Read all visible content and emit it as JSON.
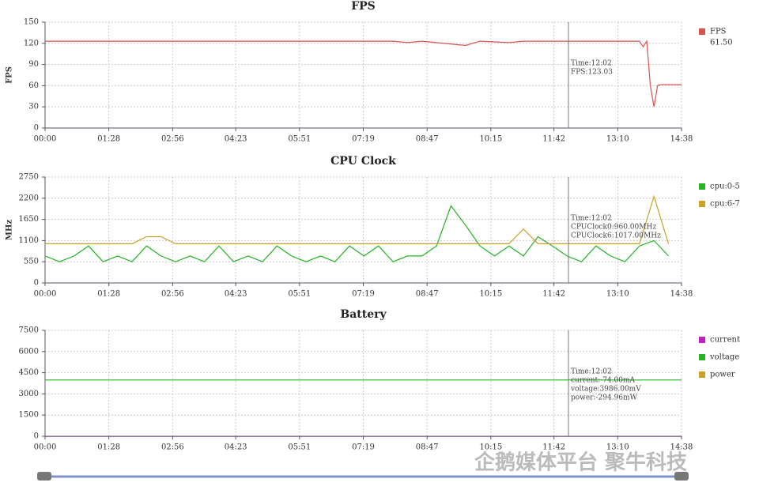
{
  "chart_data": [
    {
      "type": "line",
      "title": "FPS",
      "ylabel": "FPS",
      "xlim": [
        0,
        878
      ],
      "xticks": [
        {
          "value": 0,
          "label": "00:00"
        },
        {
          "value": 88,
          "label": "01:28"
        },
        {
          "value": 176,
          "label": "02:56"
        },
        {
          "value": 263,
          "label": "04:23"
        },
        {
          "value": 351,
          "label": "05:51"
        },
        {
          "value": 439,
          "label": "07:19"
        },
        {
          "value": 527,
          "label": "08:47"
        },
        {
          "value": 615,
          "label": "10:15"
        },
        {
          "value": 702,
          "label": "11:42"
        },
        {
          "value": 790,
          "label": "13:10"
        },
        {
          "value": 878,
          "label": "14:38"
        }
      ],
      "ylim": [
        0,
        150
      ],
      "yticks": [
        0,
        30,
        60,
        90,
        120,
        150
      ],
      "grid": true,
      "cursor_x": 722,
      "annotations": [
        "Time:12:02",
        "FPS:123.03"
      ],
      "x": [
        0,
        480,
        500,
        520,
        580,
        600,
        640,
        660,
        700,
        760,
        820,
        825,
        830,
        835,
        840,
        845,
        850,
        878
      ],
      "series": [
        {
          "name": "FPS",
          "color": "#d9534f",
          "legend_value": "61.50",
          "values": [
            123,
            123,
            121,
            123,
            117,
            123,
            121,
            123,
            123,
            123,
            123,
            115,
            123,
            60,
            30,
            60,
            61.5,
            61.5
          ]
        }
      ]
    },
    {
      "type": "line",
      "title": "CPU Clock",
      "ylabel": "MHz",
      "xlim": [
        0,
        878
      ],
      "xticks": [
        {
          "value": 0,
          "label": "00:00"
        },
        {
          "value": 88,
          "label": "01:28"
        },
        {
          "value": 176,
          "label": "02:56"
        },
        {
          "value": 263,
          "label": "04:23"
        },
        {
          "value": 351,
          "label": "05:51"
        },
        {
          "value": 439,
          "label": "07:19"
        },
        {
          "value": 527,
          "label": "08:47"
        },
        {
          "value": 615,
          "label": "10:15"
        },
        {
          "value": 702,
          "label": "11:42"
        },
        {
          "value": 790,
          "label": "13:10"
        },
        {
          "value": 878,
          "label": "14:38"
        }
      ],
      "ylim": [
        0,
        2750
      ],
      "yticks": [
        0,
        550,
        1100,
        1650,
        2200,
        2750
      ],
      "grid": true,
      "cursor_x": 722,
      "annotations": [
        "Time:12:02",
        "CPUClock0:960.00MHz",
        "CPUClock6:1017.00MHz"
      ],
      "x": [
        0,
        20,
        40,
        60,
        80,
        100,
        120,
        140,
        160,
        180,
        200,
        220,
        240,
        260,
        280,
        300,
        320,
        340,
        360,
        380,
        400,
        420,
        440,
        460,
        480,
        500,
        520,
        540,
        560,
        580,
        600,
        620,
        640,
        660,
        680,
        700,
        720,
        740,
        760,
        780,
        800,
        820,
        840,
        860
      ],
      "series": [
        {
          "name": "cpu:0-5",
          "color": "#22b422",
          "values": [
            700,
            550,
            700,
            960,
            550,
            700,
            550,
            960,
            700,
            550,
            700,
            550,
            960,
            550,
            700,
            550,
            960,
            700,
            550,
            700,
            550,
            960,
            700,
            960,
            550,
            700,
            700,
            960,
            2000,
            1500,
            960,
            700,
            960,
            700,
            1200,
            960,
            700,
            550,
            960,
            700,
            550,
            960,
            1100,
            700
          ]
        },
        {
          "name": "cpu:6-7",
          "color": "#c9a227",
          "values": [
            1017,
            1017,
            1017,
            1017,
            1017,
            1017,
            1017,
            1200,
            1200,
            1017,
            1017,
            1017,
            1017,
            1017,
            1017,
            1017,
            1017,
            1017,
            1017,
            1017,
            1017,
            1017,
            1017,
            1017,
            1017,
            1017,
            1017,
            1017,
            1017,
            1017,
            1017,
            1017,
            1017,
            1400,
            1017,
            1017,
            1017,
            1017,
            1017,
            1017,
            1017,
            1017,
            2250,
            1017
          ]
        }
      ]
    },
    {
      "type": "line",
      "title": "Battery",
      "xlim": [
        0,
        878
      ],
      "xticks": [
        {
          "value": 0,
          "label": "00:00"
        },
        {
          "value": 88,
          "label": "01:28"
        },
        {
          "value": 176,
          "label": "02:56"
        },
        {
          "value": 263,
          "label": "04:23"
        },
        {
          "value": 351,
          "label": "05:51"
        },
        {
          "value": 439,
          "label": "07:19"
        },
        {
          "value": 527,
          "label": "08:47"
        },
        {
          "value": 615,
          "label": "10:15"
        },
        {
          "value": 702,
          "label": "11:42"
        },
        {
          "value": 790,
          "label": "13:10"
        },
        {
          "value": 878,
          "label": "14:38"
        }
      ],
      "ylim": [
        0,
        7500
      ],
      "yticks": [
        0,
        1500,
        3000,
        4500,
        6000,
        7500
      ],
      "grid": true,
      "cursor_x": 722,
      "annotations": [
        "Time:12:02",
        "current:-74.00mA",
        "voltage:3986.00mV",
        "power:-294.96mW"
      ],
      "x": [
        0,
        878
      ],
      "series": [
        {
          "name": "current",
          "color": "#c020c0",
          "values": [
            -74,
            -74
          ]
        },
        {
          "name": "voltage",
          "color": "#22b422",
          "values": [
            3986,
            3986
          ]
        },
        {
          "name": "power",
          "color": "#c9a227",
          "values": [
            -294.96,
            -294.96
          ]
        }
      ]
    }
  ],
  "watermark": "企鹅媒体平台 聚牛科技"
}
